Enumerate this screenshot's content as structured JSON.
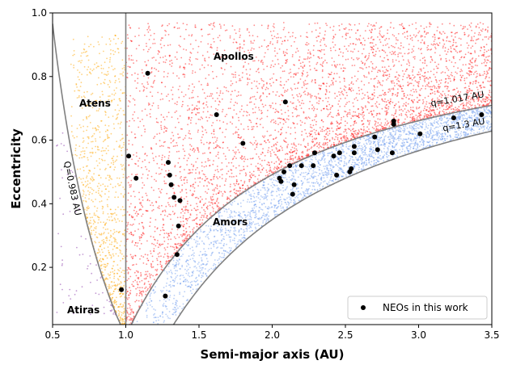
{
  "chart_data": {
    "type": "scatter",
    "xlabel": "Semi-major axis (AU)",
    "ylabel": "Eccentricity",
    "xlim": [
      0.5,
      3.5
    ],
    "ylim": [
      0.02,
      1.0
    ],
    "xticks": [
      "0.5",
      "1.0",
      "1.5",
      "2.0",
      "2.5",
      "3.0",
      "3.5"
    ],
    "yticks": [
      "0.2",
      "0.4",
      "0.6",
      "0.8",
      "1.0"
    ],
    "xtick_values": [
      0.5,
      1.0,
      1.5,
      2.0,
      2.5,
      3.0,
      3.5
    ],
    "ytick_values": [
      0.2,
      0.4,
      0.6,
      0.8,
      1.0
    ],
    "regions": [
      {
        "name": "Atiras",
        "color": "#9b59b6",
        "a": [
          0.6,
          0.83
        ],
        "e": [
          0.05,
          0.05
        ]
      },
      {
        "name": "Atens",
        "color": "#ffa500",
        "a": [
          0.62,
          0.72
        ],
        "e": [
          0.7,
          0.7
        ]
      },
      {
        "name": "Apollos",
        "color": "#ff0000",
        "a": [
          1.6,
          1.88
        ],
        "e": [
          0.85,
          0.85
        ]
      },
      {
        "name": "Amors",
        "color": "#6495ed",
        "a": [
          1.6,
          1.87
        ],
        "e": [
          0.33,
          0.33
        ]
      }
    ],
    "boundary_curves": [
      {
        "label": "Q=0.983 AU",
        "type": "aphelion",
        "value": 0.983
      },
      {
        "label": "q=1.017 AU",
        "type": "perihelion",
        "value": 1.017
      },
      {
        "label": "q=1.3 AU",
        "type": "perihelion",
        "value": 1.3
      }
    ],
    "vertical_line": {
      "a": 1.0
    },
    "series": [
      {
        "name": "NEOs in this work",
        "color": "#000000",
        "points": [
          [
            0.97,
            0.13
          ],
          [
            1.02,
            0.55
          ],
          [
            1.07,
            0.48
          ],
          [
            1.15,
            0.81
          ],
          [
            1.27,
            0.11
          ],
          [
            1.29,
            0.53
          ],
          [
            1.3,
            0.49
          ],
          [
            1.31,
            0.46
          ],
          [
            1.33,
            0.42
          ],
          [
            1.35,
            0.24
          ],
          [
            1.36,
            0.33
          ],
          [
            1.37,
            0.41
          ],
          [
            1.62,
            0.68
          ],
          [
            1.8,
            0.59
          ],
          [
            2.05,
            0.48
          ],
          [
            2.06,
            0.47
          ],
          [
            2.08,
            0.5
          ],
          [
            2.09,
            0.72
          ],
          [
            2.12,
            0.52
          ],
          [
            2.14,
            0.43
          ],
          [
            2.15,
            0.46
          ],
          [
            2.2,
            0.52
          ],
          [
            2.28,
            0.52
          ],
          [
            2.29,
            0.56
          ],
          [
            2.42,
            0.55
          ],
          [
            2.44,
            0.49
          ],
          [
            2.46,
            0.56
          ],
          [
            2.53,
            0.5
          ],
          [
            2.54,
            0.51
          ],
          [
            2.56,
            0.58
          ],
          [
            2.56,
            0.56
          ],
          [
            2.7,
            0.61
          ],
          [
            2.72,
            0.57
          ],
          [
            2.82,
            0.56
          ],
          [
            2.83,
            0.66
          ],
          [
            2.83,
            0.65
          ],
          [
            3.01,
            0.62
          ],
          [
            3.24,
            0.67
          ],
          [
            3.43,
            0.68
          ]
        ]
      }
    ],
    "legend": {
      "label": "NEOs in this work",
      "position": "lower-right"
    }
  }
}
